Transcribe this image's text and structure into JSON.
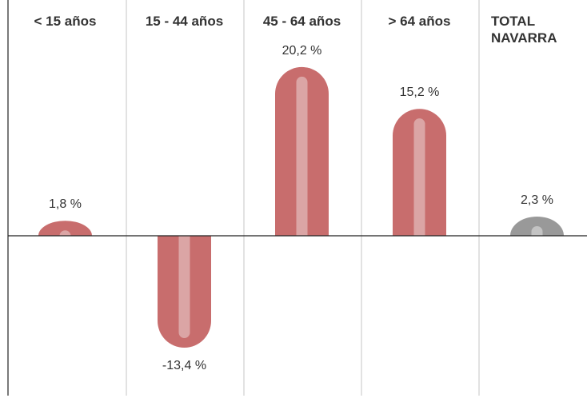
{
  "chart_data": {
    "type": "bar",
    "categories": [
      {
        "lines": [
          "< 15 años"
        ]
      },
      {
        "lines": [
          "15 - 44 años"
        ]
      },
      {
        "lines": [
          "45 - 64 años"
        ]
      },
      {
        "lines": [
          "> 64 años"
        ]
      },
      {
        "lines": [
          "TOTAL",
          "NAVARRA"
        ]
      }
    ],
    "values": [
      1.8,
      -13.4,
      20.2,
      15.2,
      2.3
    ],
    "value_labels": [
      "1,8 %",
      "-13,4 %",
      "20,2 %",
      "15,2 %",
      "2,3 %"
    ],
    "unit": "%",
    "ylim": [
      -15.5,
      20.2
    ],
    "grid": true,
    "colors": {
      "bar": "#c86d6d",
      "bar_highlight": "#dba5a5",
      "total_bar": "#999999",
      "total_highlight": "#c3c3c3",
      "divider": "#c4c4c4",
      "axis": "#222222",
      "text": "#333333"
    }
  }
}
